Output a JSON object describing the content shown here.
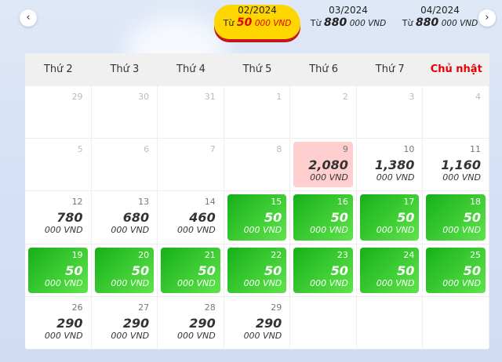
{
  "months": [
    {
      "label": "02/2024",
      "prefix": "Từ",
      "price": "50",
      "unit": "000 VND",
      "active": true
    },
    {
      "label": "03/2024",
      "prefix": "Từ",
      "price": "880",
      "unit": "000 VND"
    },
    {
      "label": "04/2024",
      "prefix": "Từ",
      "price": "880",
      "unit": "000 VND"
    }
  ],
  "nav": {
    "prev": "‹",
    "next": "›"
  },
  "weekdays": [
    "Thứ 2",
    "Thứ 3",
    "Thứ 4",
    "Thứ 5",
    "Thứ 6",
    "Thứ 7",
    "Chủ nhật"
  ],
  "colors": {
    "green": "#22b824",
    "pink": "#ffcfcf",
    "sunday": "#e60000",
    "highlight": "#ffd600"
  },
  "days": [
    {
      "day": "29",
      "state": "muted"
    },
    {
      "day": "30",
      "state": "muted"
    },
    {
      "day": "31",
      "state": "muted"
    },
    {
      "day": "1",
      "state": "muted"
    },
    {
      "day": "2",
      "state": "muted"
    },
    {
      "day": "3",
      "state": "muted"
    },
    {
      "day": "4",
      "state": "muted"
    },
    {
      "day": "5",
      "state": "muted"
    },
    {
      "day": "6",
      "state": "muted"
    },
    {
      "day": "7",
      "state": "muted"
    },
    {
      "day": "8",
      "state": "muted"
    },
    {
      "day": "9",
      "price": "2,080",
      "unit": "000 VND",
      "state": "pink"
    },
    {
      "day": "10",
      "price": "1,380",
      "unit": "000 VND"
    },
    {
      "day": "11",
      "price": "1,160",
      "unit": "000 VND"
    },
    {
      "day": "12",
      "price": "780",
      "unit": "000 VND"
    },
    {
      "day": "13",
      "price": "680",
      "unit": "000 VND"
    },
    {
      "day": "14",
      "price": "460",
      "unit": "000 VND"
    },
    {
      "day": "15",
      "price": "50",
      "unit": "000 VND",
      "state": "green"
    },
    {
      "day": "16",
      "price": "50",
      "unit": "000 VND",
      "state": "green"
    },
    {
      "day": "17",
      "price": "50",
      "unit": "000 VND",
      "state": "green"
    },
    {
      "day": "18",
      "price": "50",
      "unit": "000 VND",
      "state": "green"
    },
    {
      "day": "19",
      "price": "50",
      "unit": "000 VND",
      "state": "green"
    },
    {
      "day": "20",
      "price": "50",
      "unit": "000 VND",
      "state": "green"
    },
    {
      "day": "21",
      "price": "50",
      "unit": "000 VND",
      "state": "green"
    },
    {
      "day": "22",
      "price": "50",
      "unit": "000 VND",
      "state": "green"
    },
    {
      "day": "23",
      "price": "50",
      "unit": "000 VND",
      "state": "green"
    },
    {
      "day": "24",
      "price": "50",
      "unit": "000 VND",
      "state": "green"
    },
    {
      "day": "25",
      "price": "50",
      "unit": "000 VND",
      "state": "green"
    },
    {
      "day": "26",
      "price": "290",
      "unit": "000 VND"
    },
    {
      "day": "27",
      "price": "290",
      "unit": "000 VND"
    },
    {
      "day": "28",
      "price": "290",
      "unit": "000 VND"
    },
    {
      "day": "29",
      "price": "290",
      "unit": "000 VND"
    },
    {
      "state": "empty"
    },
    {
      "state": "empty"
    },
    {
      "state": "empty"
    }
  ]
}
